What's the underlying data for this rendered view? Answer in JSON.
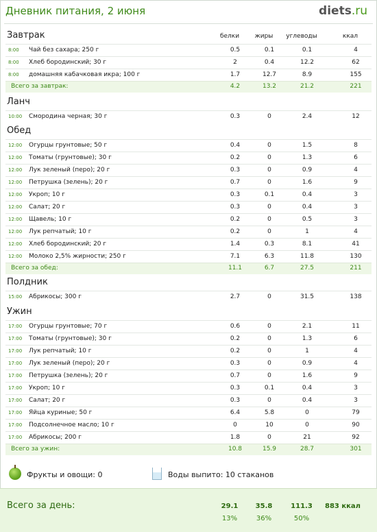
{
  "title": "Дневник питания, 2 июня",
  "logo": {
    "name": "diets",
    "tld": ".ru"
  },
  "columns": [
    "белки",
    "жиры",
    "углеводы",
    "ккал"
  ],
  "meals": [
    {
      "name": "Завтрак",
      "items": [
        {
          "time": "8:00",
          "food": "Чай без сахара; 250 г",
          "b": "0.5",
          "zh": "0.1",
          "u": "0.1",
          "kcal": "4"
        },
        {
          "time": "8:00",
          "food": "Хлеб бородинский; 30 г",
          "b": "2",
          "zh": "0.4",
          "u": "12.2",
          "kcal": "62"
        },
        {
          "time": "8:00",
          "food": "домашняя кабачковая икра; 100 г",
          "b": "1.7",
          "zh": "12.7",
          "u": "8.9",
          "kcal": "155"
        }
      ],
      "total": {
        "label": "Всего за завтрак:",
        "b": "4.2",
        "zh": "13.2",
        "u": "21.2",
        "kcal": "221"
      }
    },
    {
      "name": "Ланч",
      "items": [
        {
          "time": "10:00",
          "food": "Смородина черная; 30 г",
          "b": "0.3",
          "zh": "0",
          "u": "2.4",
          "kcal": "12"
        }
      ]
    },
    {
      "name": "Обед",
      "items": [
        {
          "time": "12:00",
          "food": "Огурцы грунтовые; 50 г",
          "b": "0.4",
          "zh": "0",
          "u": "1.5",
          "kcal": "8"
        },
        {
          "time": "12:00",
          "food": "Томаты (грунтовые); 30 г",
          "b": "0.2",
          "zh": "0",
          "u": "1.3",
          "kcal": "6"
        },
        {
          "time": "12:00",
          "food": "Лук зеленый (перо); 20 г",
          "b": "0.3",
          "zh": "0",
          "u": "0.9",
          "kcal": "4"
        },
        {
          "time": "12:00",
          "food": "Петрушка (зелень); 20 г",
          "b": "0.7",
          "zh": "0",
          "u": "1.6",
          "kcal": "9"
        },
        {
          "time": "12:00",
          "food": "Укроп; 10 г",
          "b": "0.3",
          "zh": "0.1",
          "u": "0.4",
          "kcal": "3"
        },
        {
          "time": "12:00",
          "food": "Салат; 20 г",
          "b": "0.3",
          "zh": "0",
          "u": "0.4",
          "kcal": "3"
        },
        {
          "time": "12:00",
          "food": "Щавель; 10 г",
          "b": "0.2",
          "zh": "0",
          "u": "0.5",
          "kcal": "3"
        },
        {
          "time": "12:00",
          "food": "Лук репчатый; 10 г",
          "b": "0.2",
          "zh": "0",
          "u": "1",
          "kcal": "4"
        },
        {
          "time": "12:00",
          "food": "Хлеб бородинский; 20 г",
          "b": "1.4",
          "zh": "0.3",
          "u": "8.1",
          "kcal": "41"
        },
        {
          "time": "12:00",
          "food": "Молоко 2,5% жирности; 250 г",
          "b": "7.1",
          "zh": "6.3",
          "u": "11.8",
          "kcal": "130"
        }
      ],
      "total": {
        "label": "Всего за обед:",
        "b": "11.1",
        "zh": "6.7",
        "u": "27.5",
        "kcal": "211"
      }
    },
    {
      "name": "Полдник",
      "items": [
        {
          "time": "15:00",
          "food": "Абрикосы; 300 г",
          "b": "2.7",
          "zh": "0",
          "u": "31.5",
          "kcal": "138"
        }
      ]
    },
    {
      "name": "Ужин",
      "items": [
        {
          "time": "17:00",
          "food": "Огурцы грунтовые; 70 г",
          "b": "0.6",
          "zh": "0",
          "u": "2.1",
          "kcal": "11"
        },
        {
          "time": "17:00",
          "food": "Томаты (грунтовые); 30 г",
          "b": "0.2",
          "zh": "0",
          "u": "1.3",
          "kcal": "6"
        },
        {
          "time": "17:00",
          "food": "Лук репчатый; 10 г",
          "b": "0.2",
          "zh": "0",
          "u": "1",
          "kcal": "4"
        },
        {
          "time": "17:00",
          "food": "Лук зеленый (перо); 20 г",
          "b": "0.3",
          "zh": "0",
          "u": "0.9",
          "kcal": "4"
        },
        {
          "time": "17:00",
          "food": "Петрушка (зелень); 20 г",
          "b": "0.7",
          "zh": "0",
          "u": "1.6",
          "kcal": "9"
        },
        {
          "time": "17:00",
          "food": "Укроп; 10 г",
          "b": "0.3",
          "zh": "0.1",
          "u": "0.4",
          "kcal": "3"
        },
        {
          "time": "17:00",
          "food": "Салат; 20 г",
          "b": "0.3",
          "zh": "0",
          "u": "0.4",
          "kcal": "3"
        },
        {
          "time": "17:00",
          "food": "Яйца куриные; 50 г",
          "b": "6.4",
          "zh": "5.8",
          "u": "0",
          "kcal": "79"
        },
        {
          "time": "17:00",
          "food": "Подсолнечное масло; 10 г",
          "b": "0",
          "zh": "10",
          "u": "0",
          "kcal": "90"
        },
        {
          "time": "17:00",
          "food": "Абрикосы; 200 г",
          "b": "1.8",
          "zh": "0",
          "u": "21",
          "kcal": "92"
        }
      ],
      "total": {
        "label": "Всего за ужин:",
        "b": "10.8",
        "zh": "15.9",
        "u": "28.7",
        "kcal": "301"
      }
    }
  ],
  "extras": {
    "fruits": "Фрукты и овощи: 0",
    "water": "Воды выпито: 10 стаканов"
  },
  "day_total": {
    "label": "Всего за день:",
    "b": "29.1",
    "zh": "35.8",
    "u": "111.3",
    "kcal": "883 ккал",
    "b_pct": "13%",
    "zh_pct": "36%",
    "u_pct": "50%"
  },
  "colors": {
    "accent": "#3f8a1a",
    "summary_bg": "#eef7e6",
    "day_bg": "#eaf6e0"
  }
}
